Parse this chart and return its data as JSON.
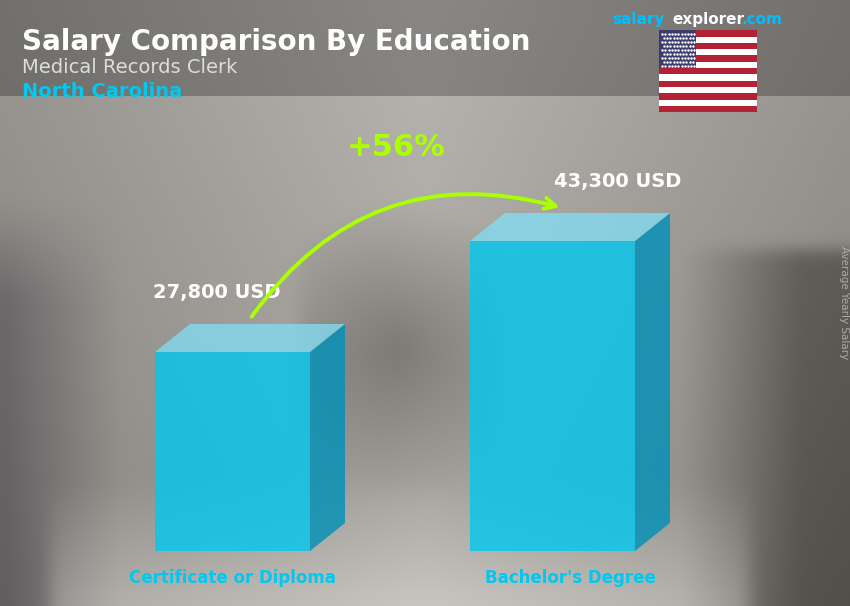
{
  "title": "Salary Comparison By Education",
  "subtitle": "Medical Records Clerk",
  "location": "North Carolina",
  "categories": [
    "Certificate or Diploma",
    "Bachelor's Degree"
  ],
  "values": [
    27800,
    43300
  ],
  "value_labels": [
    "27,800 USD",
    "43,300 USD"
  ],
  "pct_change": "+56%",
  "bar_face_color": "#00C8F0",
  "bar_right_color": "#0090B8",
  "bar_top_color": "#80E0F8",
  "cat_label_color": "#00C8F0",
  "title_color": "#FFFFFF",
  "subtitle_color": "#DDDDDD",
  "location_color": "#00C8F0",
  "value_color": "#FFFFFF",
  "pct_color": "#AAFF00",
  "arrow_color": "#AAFF00",
  "site_salary_color": "#00BFFF",
  "site_explorer_color": "#FFFFFF",
  "site_com_color": "#00BFFF",
  "avg_salary_color": "#AAAAAA",
  "figsize": [
    8.5,
    6.06
  ],
  "dpi": 100
}
